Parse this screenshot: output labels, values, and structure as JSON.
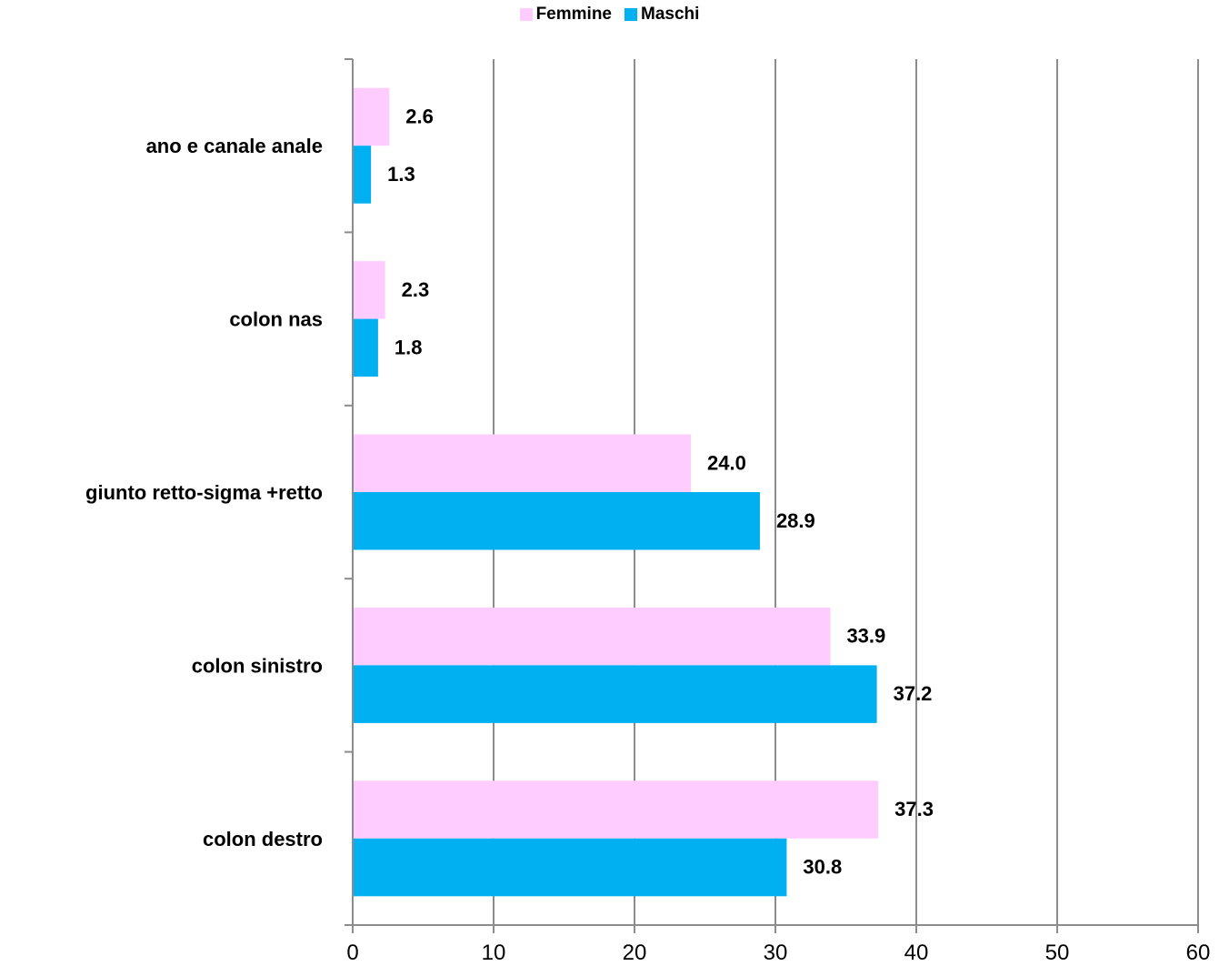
{
  "chart_data": {
    "type": "bar",
    "orientation": "horizontal",
    "categories": [
      "ano e canale  anale",
      "colon nas",
      "giunto retto-sigma +retto",
      "colon sinistro",
      "colon destro"
    ],
    "series": [
      {
        "name": "Femmine",
        "color": "#ffccff",
        "values": [
          2.6,
          2.3,
          24.0,
          33.9,
          37.3
        ],
        "labels": [
          "2.6",
          "2.3",
          "24.0",
          "33.9",
          "37.3"
        ]
      },
      {
        "name": "Maschi",
        "color": "#00b0f0",
        "values": [
          1.3,
          1.8,
          28.9,
          37.2,
          30.8
        ],
        "labels": [
          "1.3",
          "1.8",
          "28.9",
          "37.2",
          "30.8"
        ]
      }
    ],
    "xlim": [
      0,
      60
    ],
    "xticks": [
      "0",
      "10",
      "20",
      "30",
      "40",
      "50",
      "60"
    ],
    "grid": "vertical",
    "legend": "top-center"
  }
}
